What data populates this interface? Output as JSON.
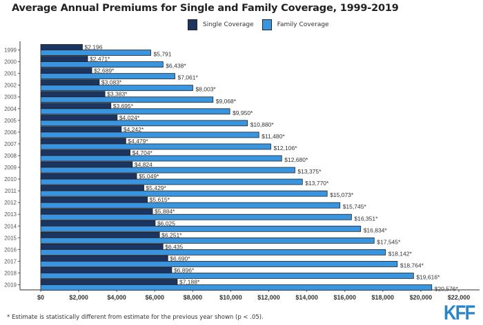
{
  "chart_data": {
    "type": "bar",
    "orientation": "horizontal",
    "title": "Average Annual Premiums for Single and Family Coverage, 1999-2019",
    "xlabel": "",
    "ylabel": "",
    "xlim": [
      0,
      22000
    ],
    "x_ticks": [
      0,
      2000,
      4000,
      6000,
      8000,
      10000,
      12000,
      14000,
      16000,
      18000,
      20000,
      22000
    ],
    "x_tick_labels": [
      "$0",
      "$2,000",
      "$4,000",
      "$6,000",
      "$8,000",
      "$10,000",
      "$12,000",
      "$14,000",
      "$16,000",
      "$18,000",
      "$20,000",
      "$22,000"
    ],
    "legend_position": "top-center",
    "grid": false,
    "categories": [
      "1999",
      "2000",
      "2001",
      "2002",
      "2003",
      "2004",
      "2005",
      "2006",
      "2007",
      "2008",
      "2009",
      "2010",
      "2011",
      "2012",
      "2013",
      "2014",
      "2015",
      "2016",
      "2017",
      "2018",
      "2019"
    ],
    "series": [
      {
        "name": "Single Coverage",
        "color": "#1b3560",
        "values": [
          2196,
          2471,
          2689,
          3083,
          3383,
          3695,
          4024,
          4242,
          4479,
          4704,
          4824,
          5049,
          5429,
          5615,
          5884,
          6025,
          6251,
          6435,
          6690,
          6896,
          7188
        ],
        "labels": [
          "$2,196",
          "$2,471*",
          "$2,689*",
          "$3,083*",
          "$3,383*",
          "$3,695*",
          "$4,024*",
          "$4,242*",
          "$4,479*",
          "$4,704*",
          "$4,824",
          "$5,049*",
          "$5,429*",
          "$5,615*",
          "$5,884*",
          "$6,025",
          "$6,251*",
          "$6,435",
          "$6,690*",
          "$6,896*",
          "$7,188*"
        ]
      },
      {
        "name": "Family Coverage",
        "color": "#3a95e0",
        "values": [
          5791,
          6438,
          7061,
          8003,
          9068,
          9950,
          10880,
          11480,
          12106,
          12680,
          13375,
          13770,
          15073,
          15745,
          16351,
          16834,
          17545,
          18142,
          18764,
          19616,
          20576
        ],
        "labels": [
          "$5,791",
          "$6,438*",
          "$7,061*",
          "$8,003*",
          "$9,068*",
          "$9,950*",
          "$10,880*",
          "$11,480*",
          "$12,106*",
          "$12,680*",
          "$13,375*",
          "$13,770*",
          "$15,073*",
          "$15,745*",
          "$16,351*",
          "$16,834*",
          "$17,545*",
          "$18,142*",
          "$18,764*",
          "$19,616*",
          "$20,576*"
        ]
      }
    ],
    "footnote": "* Estimate is statistically different from estimate for the previous year shown (p < .05)."
  },
  "legend": {
    "single_label": "Single Coverage",
    "family_label": "Family Coverage"
  },
  "brand": {
    "logo_text": "KFF",
    "logo_color": "#2a86c7"
  }
}
